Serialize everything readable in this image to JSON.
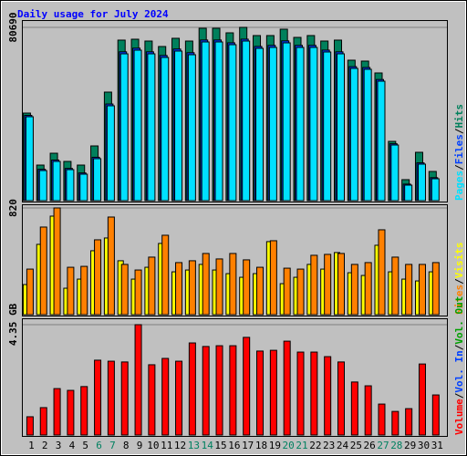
{
  "title": "Daily usage for July 2024",
  "separator": "/",
  "chart_data": [
    {
      "type": "bar",
      "series": [
        {
          "name": "Hits",
          "color": "#00805c",
          "values": [
            40770,
            16560,
            22080,
            18260,
            16560,
            25480,
            50540,
            74750,
            75170,
            74320,
            71770,
            75600,
            74320,
            80270,
            80270,
            78140,
            80690,
            76870,
            76870,
            79840,
            76020,
            76870,
            74320,
            74750,
            65400,
            64980,
            59460,
            27600,
            9770,
            22510,
            13590
          ]
        },
        {
          "name": "Files",
          "color": "#0040ff",
          "values": [
            39700,
            14600,
            18900,
            15000,
            12900,
            20200,
            45000,
            69300,
            71000,
            69300,
            67600,
            70600,
            68900,
            74800,
            74800,
            73500,
            75200,
            71800,
            72300,
            74400,
            72300,
            72300,
            70100,
            69300,
            62400,
            62000,
            56400,
            26500,
            7700,
            17600,
            10700
          ]
        },
        {
          "name": "Pages",
          "color": "#00e0ff",
          "values": [
            39070,
            14010,
            18260,
            14440,
            12320,
            19540,
            44170,
            68370,
            70070,
            68370,
            66680,
            69650,
            67950,
            73900,
            73900,
            72620,
            74320,
            70920,
            71350,
            73470,
            71350,
            71350,
            69220,
            68370,
            61580,
            61160,
            55630,
            25910,
            7220,
            16990,
            10190
          ]
        }
      ],
      "ylim": [
        0,
        80690
      ],
      "yticks": [
        80690
      ]
    },
    {
      "type": "bar",
      "series": [
        {
          "name": "Visits",
          "color": "#ffff00",
          "values": [
            231,
            540,
            757,
            203,
            273,
            491,
            589,
            414,
            273,
            364,
            547,
            329,
            343,
            386,
            343,
            315,
            287,
            315,
            561,
            238,
            287,
            386,
            350,
            477,
            322,
            301,
            533,
            329,
            273,
            259,
            329
          ]
        },
        {
          "name": "Sites",
          "color": "#ff8000",
          "values": [
            350,
            673,
            820,
            364,
            371,
            575,
            750,
            386,
            343,
            442,
            610,
            400,
            414,
            470,
            428,
            470,
            421,
            364,
            568,
            357,
            350,
            456,
            463,
            470,
            386,
            400,
            652,
            442,
            386,
            386,
            400
          ]
        }
      ],
      "ylim": [
        0,
        820
      ],
      "yticks": [
        820
      ]
    },
    {
      "type": "bar",
      "categories": [
        "1",
        "2",
        "3",
        "4",
        "5",
        "6",
        "7",
        "8",
        "9",
        "10",
        "11",
        "12",
        "13",
        "14",
        "15",
        "16",
        "17",
        "18",
        "19",
        "20",
        "21",
        "22",
        "23",
        "24",
        "25",
        "26",
        "27",
        "28",
        "29",
        "30",
        "31"
      ],
      "category_colors": [
        "#000000",
        "#000000",
        "#000000",
        "#000000",
        "#000000",
        "#008060",
        "#008060",
        "#000000",
        "#000000",
        "#000000",
        "#000000",
        "#000000",
        "#008060",
        "#008060",
        "#000000",
        "#000000",
        "#000000",
        "#000000",
        "#000000",
        "#008060",
        "#008060",
        "#000000",
        "#000000",
        "#000000",
        "#000000",
        "#000000",
        "#008060",
        "#008060",
        "#000000",
        "#000000",
        "#000000"
      ],
      "series": [
        {
          "name": "Volume",
          "color": "#ff0000",
          "values": [
            0.72,
            1.08,
            1.83,
            1.76,
            1.91,
            2.95,
            2.91,
            2.88,
            4.35,
            2.77,
            3.02,
            2.91,
            3.63,
            3.49,
            3.52,
            3.52,
            3.85,
            3.31,
            3.34,
            3.7,
            3.27,
            3.27,
            3.09,
            2.88,
            2.09,
            1.94,
            1.22,
            0.93,
            1.04,
            2.8,
            1.58
          ]
        }
      ],
      "legend_extra": [
        {
          "name": "Vol. In",
          "color": "#0040ff"
        },
        {
          "name": "Vol. Out",
          "color": "#00a000"
        }
      ],
      "ylim": [
        0,
        4.35
      ],
      "yticks": [
        {
          "value": 4.35,
          "label": "4.35 GB"
        }
      ]
    }
  ]
}
